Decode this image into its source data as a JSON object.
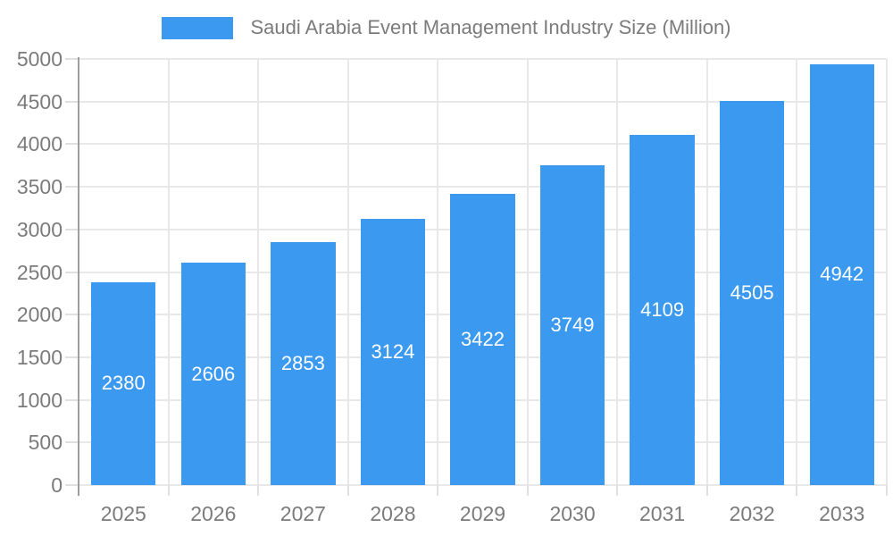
{
  "legend": {
    "label": "Saudi Arabia Event Management Industry Size (Million)"
  },
  "chart_data": {
    "type": "bar",
    "title": "Saudi Arabia Event Management Industry Size (Million)",
    "categories": [
      "2025",
      "2026",
      "2027",
      "2028",
      "2029",
      "2030",
      "2031",
      "2032",
      "2033"
    ],
    "values": [
      2380,
      2606,
      2853,
      3124,
      3422,
      3749,
      4109,
      4505,
      4942
    ],
    "yticks": [
      "0",
      "500",
      "1000",
      "1500",
      "2000",
      "2500",
      "3000",
      "3500",
      "4000",
      "4500",
      "5000"
    ],
    "ylim": [
      0,
      5000
    ],
    "ytick_step": 500,
    "xlabel": "",
    "ylabel": "",
    "grid": true,
    "legend_position": "top",
    "bar_color": "#3B99F0",
    "value_label_color": "#ffffff",
    "axis_text_color": "#7b7b7b",
    "gridline_color": "#e8e8e8",
    "axis_line_color": "#9e9e9e"
  }
}
